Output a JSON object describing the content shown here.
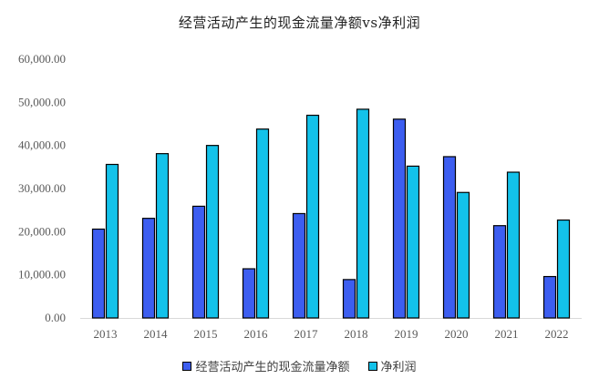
{
  "chart_data": {
    "type": "bar",
    "title": "经营活动产生的现金流量净额vs净利润",
    "xlabel": "",
    "ylabel": "",
    "categories": [
      "2013",
      "2014",
      "2015",
      "2016",
      "2017",
      "2018",
      "2019",
      "2020",
      "2021",
      "2022"
    ],
    "series": [
      {
        "name": "经营活动产生的现金流量净额",
        "color": "#3d5ef0",
        "values": [
          20600,
          23100,
          25900,
          11400,
          24200,
          8900,
          46100,
          37400,
          21400,
          9600
        ]
      },
      {
        "name": "净利润",
        "color": "#13c2ea",
        "values": [
          35600,
          38100,
          40000,
          43800,
          47000,
          48400,
          35200,
          29100,
          33800,
          22700
        ]
      }
    ],
    "ylim": [
      0,
      60000
    ],
    "yticks": [
      "0.00",
      "10,000.00",
      "20,000.00",
      "30,000.00",
      "40,000.00",
      "50,000.00",
      "60,000.00"
    ],
    "ytick_values": [
      0,
      10000,
      20000,
      30000,
      40000,
      50000,
      60000
    ],
    "grid": false,
    "legend_position": "bottom"
  }
}
